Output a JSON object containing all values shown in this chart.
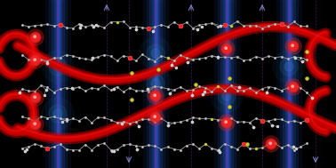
{
  "bg_color": "#000000",
  "fig_width": 3.78,
  "fig_height": 1.89,
  "dpi": 100,
  "red_ribbon_color": "#cc0000",
  "red_ribbon_bright": "#ff1111",
  "blue_plane_color": "#0a1a40",
  "blue_plane_mid": "#1a3a7a",
  "blue_plane_center": "#2244aa",
  "purple_line_color": "#7733aa",
  "cyan_line_color": "#2299cc",
  "molecule_line_color": "#999999",
  "atom_white_color": "#cccccc",
  "atom_red_color": "#ee2222",
  "atom_red_glow": "#ff6666",
  "atom_yellow_color": "#cccc44",
  "glow_color": "#3388cc",
  "arrow_color": "#8888cc",
  "blue_ribbon_color": "#224488"
}
